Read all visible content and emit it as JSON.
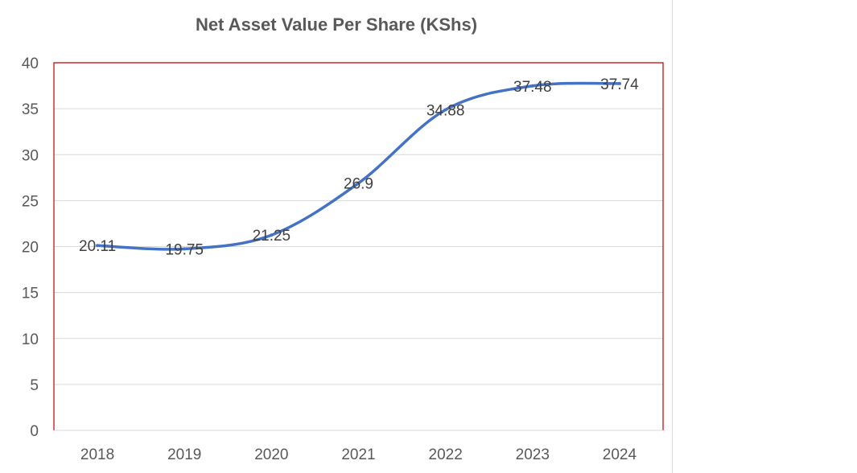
{
  "chart_data": {
    "type": "line",
    "title": "Net Asset Value Per Share (KShs)",
    "categories": [
      "2018",
      "2019",
      "2020",
      "2021",
      "2022",
      "2023",
      "2024"
    ],
    "series": [
      {
        "values": [
          20.11,
          19.75,
          21.25,
          26.9,
          34.88,
          37.48,
          37.74
        ]
      }
    ],
    "data_labels": [
      "20.11",
      "19.75",
      "21.25",
      "26.9",
      "34.88",
      "37.48",
      "37.74"
    ],
    "ylim": [
      0,
      40
    ],
    "yticks": [
      0,
      5,
      10,
      15,
      20,
      25,
      30,
      35,
      40
    ],
    "xlabel": "",
    "ylabel": "",
    "grid": true,
    "legend": "none",
    "line_color": "#4472c4",
    "plot_border_color": "#c00000"
  }
}
